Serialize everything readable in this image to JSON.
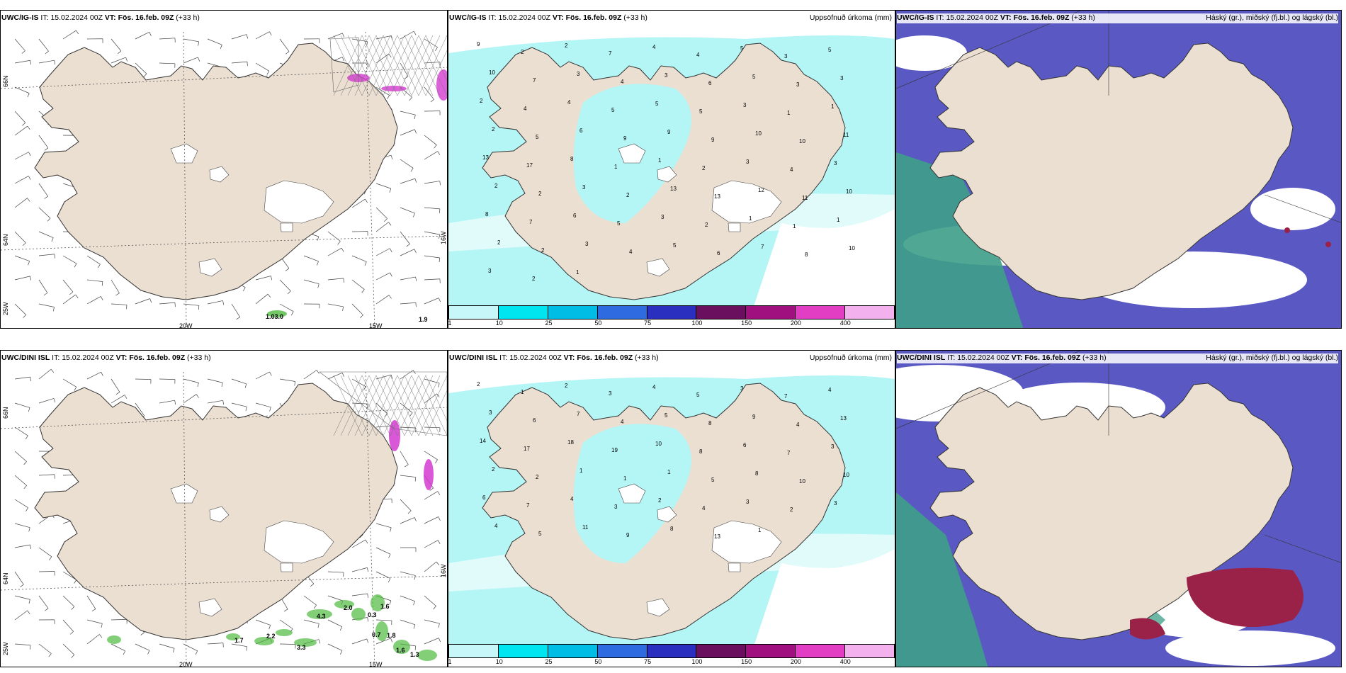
{
  "colors": {
    "land": "#eadfd1",
    "sea": "#ffffff",
    "precip_light": "#b4f5f5",
    "precip_mid": "#9fe3f0",
    "cloud_high": "#3d9e88",
    "cloud_mid": "#5a59c4",
    "cloud_low": "#9a2248",
    "snow_green": "#4dba3f",
    "magenta": "#d43ad0"
  },
  "panels": [
    {
      "model": "UWC/IG-IS",
      "it_label": "IT:",
      "it": "15.02.2024 00Z",
      "vt_label": "VT:",
      "vt": "Fös. 16.feb. 09Z",
      "lead": "(+33 h)",
      "title": "",
      "kind": "wind"
    },
    {
      "model": "UWC/IG-IS",
      "it_label": "IT:",
      "it": "15.02.2024 00Z",
      "vt_label": "VT:",
      "vt": "Fös. 16.feb. 09Z",
      "lead": "(+33 h)",
      "title": "Uppsöfnuð úrkoma (mm)",
      "kind": "precip"
    },
    {
      "model": "UWC/IG-IS",
      "it_label": "IT:",
      "it": "15.02.2024 00Z",
      "vt_label": "VT:",
      "vt": "Fös. 16.feb. 09Z",
      "lead": "(+33 h)",
      "title": "Háský (gr.), miðský (fj.bl.) og lágský (bl.)",
      "kind": "cloud"
    },
    {
      "model": "UWC/DINI ISL",
      "it_label": "IT:",
      "it": "15.02.2024 00Z",
      "vt_label": "VT:",
      "vt": "Fös. 16.feb. 09Z",
      "lead": "(+33 h)",
      "title": "",
      "kind": "wind"
    },
    {
      "model": "UWC/DINI ISL",
      "it_label": "IT:",
      "it": "15.02.2024 00Z",
      "vt_label": "VT:",
      "vt": "Fös. 16.feb. 09Z",
      "lead": "(+33 h)",
      "title": "Uppsöfnuð úrkoma (mm)",
      "kind": "precip"
    },
    {
      "model": "UWC/DINI ISL",
      "it_label": "IT:",
      "it": "15.02.2024 00Z",
      "vt_label": "VT:",
      "vt": "Fös. 16.feb. 09Z",
      "lead": "(+33 h)",
      "title": "Háský (gr.), miðský (fj.bl.) og lágský (bl.)",
      "kind": "cloud"
    }
  ],
  "axis_labels": {
    "lon1": "20W",
    "lon2": "15W",
    "lat1": "66N",
    "lat2": "64N",
    "lon_left": "25W",
    "lon_right": "16W"
  },
  "precip_legend": {
    "colors": [
      "#c8f7fa",
      "#00e5f0",
      "#00bde6",
      "#2f6be0",
      "#2b2fc0",
      "#6a0f5e",
      "#a0107f",
      "#e23ec3",
      "#f3b2ee"
    ],
    "ticks": [
      "1",
      "10",
      "25",
      "50",
      "75",
      "100",
      "150",
      "200",
      "400"
    ]
  },
  "wind_numbers_top": [
    "1.03.0",
    "1.9"
  ],
  "wind_numbers_bottom": [
    "4.3",
    "2.2",
    "2.0",
    "3.3",
    "0.3",
    "1.6",
    "0.7",
    "1.8",
    "1.6",
    "1.3",
    "1.7"
  ],
  "precip_numbers_top": [
    "9",
    "2",
    "2",
    "7",
    "4",
    "4",
    "5",
    "3",
    "5",
    "10",
    "7",
    "3",
    "4",
    "3",
    "6",
    "5",
    "3",
    "3",
    "2",
    "4",
    "4",
    "5",
    "5",
    "5",
    "3",
    "1",
    "1",
    "2",
    "5",
    "6",
    "9",
    "9",
    "9",
    "10",
    "10",
    "11",
    "13",
    "17",
    "8",
    "1",
    "1",
    "2",
    "3",
    "4",
    "3",
    "2",
    "2",
    "3",
    "2",
    "13",
    "13",
    "12",
    "11",
    "10",
    "8",
    "7",
    "6",
    "5",
    "3",
    "2",
    "1",
    "1",
    "1",
    "2",
    "2",
    "3",
    "4",
    "5",
    "6",
    "7",
    "8",
    "10",
    "3",
    "2",
    "1"
  ],
  "precip_numbers_bottom": [
    "2",
    "1",
    "2",
    "3",
    "4",
    "5",
    "3",
    "7",
    "4",
    "3",
    "6",
    "7",
    "4",
    "5",
    "8",
    "9",
    "4",
    "13",
    "14",
    "17",
    "18",
    "19",
    "10",
    "8",
    "6",
    "7",
    "3",
    "2",
    "2",
    "1",
    "1",
    "1",
    "5",
    "8",
    "10",
    "10",
    "6",
    "7",
    "4",
    "3",
    "2",
    "4",
    "3",
    "2",
    "3",
    "4",
    "5",
    "11",
    "9",
    "8",
    "13",
    "1"
  ]
}
